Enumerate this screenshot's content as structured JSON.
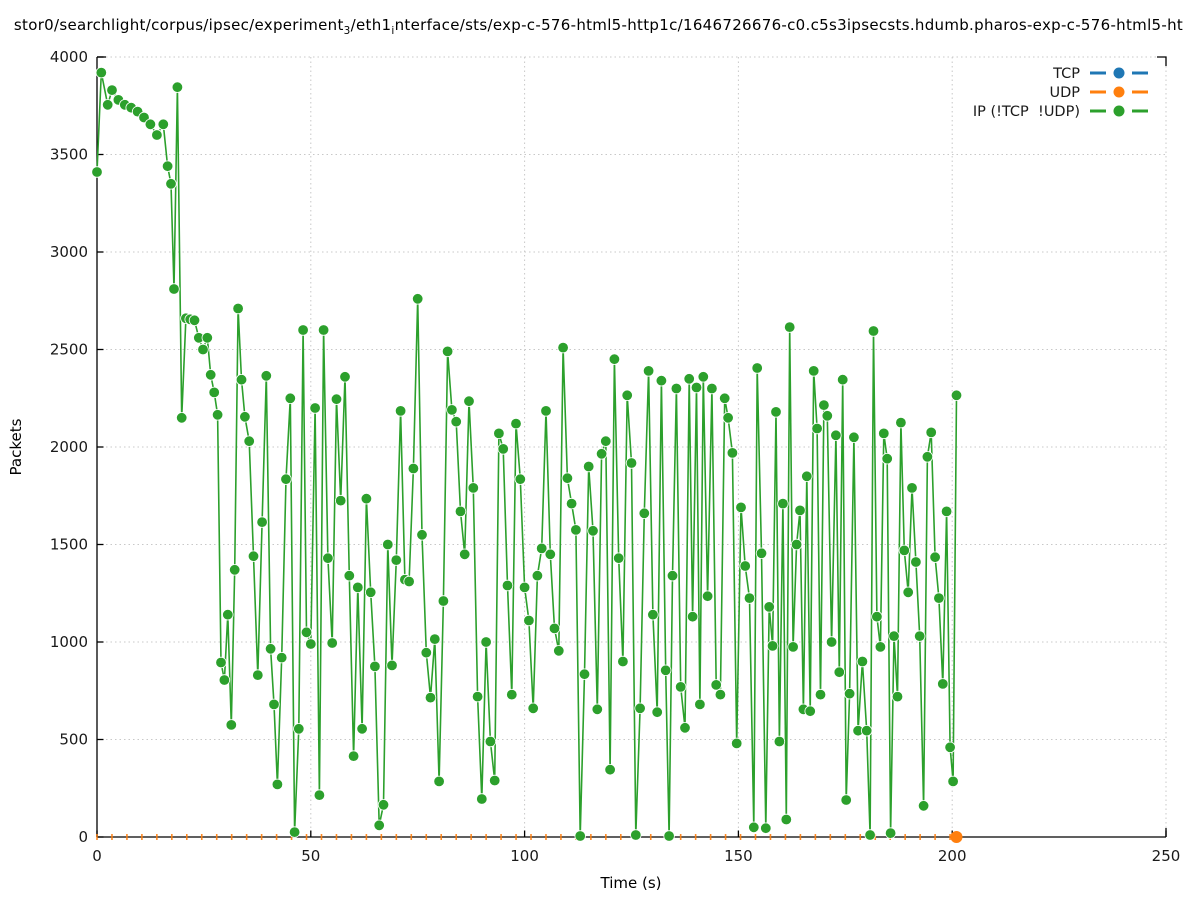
{
  "title": {
    "segments": [
      {
        "text": "stor0/searchlight/corpus/ipsec/experiment",
        "sub": false
      },
      {
        "text": "3",
        "sub": true
      },
      {
        "text": "/eth1",
        "sub": false
      },
      {
        "text": "i",
        "sub": true
      },
      {
        "text": "nterface/sts/exp-c-576-html5-http1c/1646726676-c0.c5s3ipsecsts.hdumb.pharos-exp-c-576-html5-ht",
        "sub": false
      }
    ]
  },
  "colors": {
    "background": "#ffffff",
    "grid": "#c8c8c8",
    "axis": "#000000",
    "text": "#1a1a1a",
    "tcp": "#1f77b4",
    "udp": "#ff7f0e",
    "ip": "#2ca02c"
  },
  "chart_data": {
    "type": "line",
    "title_plain": "stor0/searchlight/corpus/ipsec/experiment3/eth1interface/sts/exp-c-576-html5-http1c/1646726676-c0.c5s3ipsecsts.hdumb.pharos-exp-c-576-html5-ht",
    "xlabel": "Time (s)",
    "ylabel": "Packets",
    "xlim": [
      0,
      250
    ],
    "ylim": [
      0,
      4000
    ],
    "xticks": [
      0,
      50,
      100,
      150,
      200,
      250
    ],
    "yticks": [
      0,
      500,
      1000,
      1500,
      2000,
      2500,
      3000,
      3500,
      4000
    ],
    "grid": true,
    "legend_position": "top-right",
    "series": [
      {
        "name": "TCP",
        "color": "#1f77b4",
        "marker": "circle",
        "points": []
      },
      {
        "name": "UDP",
        "color": "#ff7f0e",
        "marker": "circle",
        "note": "flat at 0 across capture; small dash marks along axis, full dot at end",
        "points": [
          [
            0,
            0
          ],
          [
            3.5,
            0
          ],
          [
            7,
            0
          ],
          [
            10.5,
            0
          ],
          [
            14,
            0
          ],
          [
            17.5,
            0
          ],
          [
            21,
            0
          ],
          [
            24.5,
            0
          ],
          [
            28,
            0
          ],
          [
            31.5,
            0
          ],
          [
            35,
            0
          ],
          [
            38.5,
            0
          ],
          [
            42,
            0
          ],
          [
            45.5,
            0
          ],
          [
            49,
            0
          ],
          [
            52.5,
            0
          ],
          [
            56,
            0
          ],
          [
            59.5,
            0
          ],
          [
            63,
            0
          ],
          [
            66.5,
            0
          ],
          [
            70,
            0
          ],
          [
            73.5,
            0
          ],
          [
            77,
            0
          ],
          [
            80.5,
            0
          ],
          [
            84,
            0
          ],
          [
            87.5,
            0
          ],
          [
            91,
            0
          ],
          [
            94.5,
            0
          ],
          [
            98,
            0
          ],
          [
            101.5,
            0
          ],
          [
            105,
            0
          ],
          [
            108.5,
            0
          ],
          [
            112,
            0
          ],
          [
            115.5,
            0
          ],
          [
            119,
            0
          ],
          [
            122.5,
            0
          ],
          [
            126,
            0
          ],
          [
            129.5,
            0
          ],
          [
            133,
            0
          ],
          [
            136.5,
            0
          ],
          [
            140,
            0
          ],
          [
            143.5,
            0
          ],
          [
            147,
            0
          ],
          [
            150.5,
            0
          ],
          [
            154,
            0
          ],
          [
            157.5,
            0
          ],
          [
            161,
            0
          ],
          [
            164.5,
            0
          ],
          [
            168,
            0
          ],
          [
            171.5,
            0
          ],
          [
            175,
            0
          ],
          [
            178.5,
            0
          ],
          [
            182,
            0
          ],
          [
            185.5,
            0
          ],
          [
            189,
            0
          ],
          [
            192.5,
            0
          ],
          [
            196,
            0
          ],
          [
            199.5,
            0
          ]
        ],
        "final_point": [
          201,
          0
        ]
      },
      {
        "name": "IP (!TCP  !UDP)",
        "color": "#2ca02c",
        "marker": "circle",
        "points": [
          [
            0,
            3410
          ],
          [
            1,
            3920
          ],
          [
            2.5,
            3755
          ],
          [
            3.5,
            3830
          ],
          [
            5,
            3780
          ],
          [
            6.5,
            3755
          ],
          [
            8,
            3740
          ],
          [
            9.5,
            3720
          ],
          [
            11,
            3690
          ],
          [
            12.5,
            3655
          ],
          [
            14,
            3600
          ],
          [
            15.5,
            3655
          ],
          [
            16.5,
            3440
          ],
          [
            17.3,
            3350
          ],
          [
            18,
            2810
          ],
          [
            18.8,
            3845
          ],
          [
            19.8,
            2150
          ],
          [
            20.8,
            2660
          ],
          [
            21.8,
            2655
          ],
          [
            22.8,
            2650
          ],
          [
            23.8,
            2560
          ],
          [
            24.8,
            2500
          ],
          [
            25.8,
            2560
          ],
          [
            26.6,
            2370
          ],
          [
            27.4,
            2280
          ],
          [
            28.2,
            2165
          ],
          [
            29,
            895
          ],
          [
            29.8,
            805
          ],
          [
            30.6,
            1140
          ],
          [
            31.4,
            575
          ],
          [
            32.2,
            1370
          ],
          [
            33,
            2710
          ],
          [
            33.8,
            2345
          ],
          [
            34.6,
            2155
          ],
          [
            35.6,
            2030
          ],
          [
            36.6,
            1440
          ],
          [
            37.6,
            830
          ],
          [
            38.6,
            1615
          ],
          [
            39.6,
            2365
          ],
          [
            40.6,
            965
          ],
          [
            41.4,
            680
          ],
          [
            42.2,
            270
          ],
          [
            43.2,
            920
          ],
          [
            44.2,
            1835
          ],
          [
            45.2,
            2250
          ],
          [
            46.2,
            25
          ],
          [
            47.2,
            555
          ],
          [
            48.2,
            2600
          ],
          [
            49,
            1050
          ],
          [
            50,
            990
          ],
          [
            51,
            2200
          ],
          [
            52,
            215
          ],
          [
            53,
            2600
          ],
          [
            54,
            1430
          ],
          [
            55,
            995
          ],
          [
            56,
            2245
          ],
          [
            57,
            1725
          ],
          [
            58,
            2360
          ],
          [
            59,
            1340
          ],
          [
            60,
            415
          ],
          [
            61,
            1280
          ],
          [
            62,
            555
          ],
          [
            63,
            1735
          ],
          [
            64,
            1255
          ],
          [
            65,
            875
          ],
          [
            66,
            60
          ],
          [
            67,
            165
          ],
          [
            68,
            1500
          ],
          [
            69,
            880
          ],
          [
            70,
            1420
          ],
          [
            71,
            2185
          ],
          [
            72,
            1320
          ],
          [
            73,
            1310
          ],
          [
            74,
            1890
          ],
          [
            75,
            2760
          ],
          [
            76,
            1550
          ],
          [
            77,
            945
          ],
          [
            78,
            715
          ],
          [
            79,
            1015
          ],
          [
            80,
            285
          ],
          [
            81,
            1210
          ],
          [
            82,
            2490
          ],
          [
            83,
            2190
          ],
          [
            84,
            2130
          ],
          [
            85,
            1670
          ],
          [
            86,
            1450
          ],
          [
            87,
            2235
          ],
          [
            88,
            1790
          ],
          [
            89,
            720
          ],
          [
            90,
            195
          ],
          [
            91,
            1000
          ],
          [
            92,
            490
          ],
          [
            93,
            290
          ],
          [
            94,
            2070
          ],
          [
            95,
            1990
          ],
          [
            96,
            1290
          ],
          [
            97,
            730
          ],
          [
            98,
            2120
          ],
          [
            99,
            1835
          ],
          [
            100,
            1280
          ],
          [
            101,
            1110
          ],
          [
            102,
            660
          ],
          [
            103,
            1340
          ],
          [
            104,
            1480
          ],
          [
            105,
            2185
          ],
          [
            106,
            1450
          ],
          [
            107,
            1070
          ],
          [
            108,
            955
          ],
          [
            109,
            2510
          ],
          [
            110,
            1840
          ],
          [
            111,
            1710
          ],
          [
            112,
            1575
          ],
          [
            113,
            5
          ],
          [
            114,
            835
          ],
          [
            115,
            1900
          ],
          [
            116,
            1570
          ],
          [
            117,
            655
          ],
          [
            118,
            1965
          ],
          [
            119,
            2030
          ],
          [
            120,
            345
          ],
          [
            121,
            2450
          ],
          [
            122,
            1430
          ],
          [
            123,
            900
          ],
          [
            124,
            2265
          ],
          [
            125,
            1918
          ],
          [
            126,
            10
          ],
          [
            127,
            660
          ],
          [
            128,
            1660
          ],
          [
            129,
            2390
          ],
          [
            130,
            1140
          ],
          [
            131,
            640
          ],
          [
            132,
            2340
          ],
          [
            133,
            855
          ],
          [
            133.8,
            5
          ],
          [
            134.6,
            1340
          ],
          [
            135.5,
            2300
          ],
          [
            136.5,
            770
          ],
          [
            137.5,
            560
          ],
          [
            138.5,
            2350
          ],
          [
            139.3,
            1130
          ],
          [
            140.2,
            2305
          ],
          [
            141,
            680
          ],
          [
            141.8,
            2360
          ],
          [
            142.8,
            1235
          ],
          [
            143.8,
            2300
          ],
          [
            144.8,
            780
          ],
          [
            145.8,
            730
          ],
          [
            146.8,
            2250
          ],
          [
            147.6,
            2150
          ],
          [
            148.6,
            1970
          ],
          [
            149.6,
            480
          ],
          [
            150.6,
            1690
          ],
          [
            151.6,
            1390
          ],
          [
            152.6,
            1225
          ],
          [
            153.6,
            50
          ],
          [
            154.4,
            2405
          ],
          [
            155.4,
            1455
          ],
          [
            156.4,
            45
          ],
          [
            157.2,
            1180
          ],
          [
            158,
            980
          ],
          [
            158.8,
            2180
          ],
          [
            159.6,
            490
          ],
          [
            160.4,
            1710
          ],
          [
            161.2,
            90
          ],
          [
            162,
            2615
          ],
          [
            162.8,
            975
          ],
          [
            163.6,
            1500
          ],
          [
            164.4,
            1675
          ],
          [
            165.2,
            655
          ],
          [
            166,
            1850
          ],
          [
            166.8,
            645
          ],
          [
            167.6,
            2390
          ],
          [
            168.4,
            2095
          ],
          [
            169.2,
            730
          ],
          [
            170,
            2215
          ],
          [
            170.8,
            2160
          ],
          [
            171.8,
            1000
          ],
          [
            172.8,
            2060
          ],
          [
            173.6,
            845
          ],
          [
            174.4,
            2345
          ],
          [
            175.2,
            190
          ],
          [
            176,
            735
          ],
          [
            177,
            2050
          ],
          [
            178,
            545
          ],
          [
            179,
            900
          ],
          [
            180,
            545
          ],
          [
            180.8,
            10
          ],
          [
            181.6,
            2595
          ],
          [
            182.4,
            1130
          ],
          [
            183.2,
            975
          ],
          [
            184,
            2070
          ],
          [
            184.8,
            1940
          ],
          [
            185.6,
            20
          ],
          [
            186.4,
            1030
          ],
          [
            187.2,
            720
          ],
          [
            188,
            2125
          ],
          [
            188.8,
            1470
          ],
          [
            189.7,
            1255
          ],
          [
            190.6,
            1790
          ],
          [
            191.5,
            1410
          ],
          [
            192.4,
            1030
          ],
          [
            193.3,
            160
          ],
          [
            194.2,
            1950
          ],
          [
            195.1,
            2075
          ],
          [
            196,
            1435
          ],
          [
            196.9,
            1225
          ],
          [
            197.8,
            785
          ],
          [
            198.7,
            1670
          ],
          [
            199.5,
            460
          ],
          [
            200.2,
            285
          ],
          [
            201,
            2265
          ]
        ]
      }
    ]
  }
}
